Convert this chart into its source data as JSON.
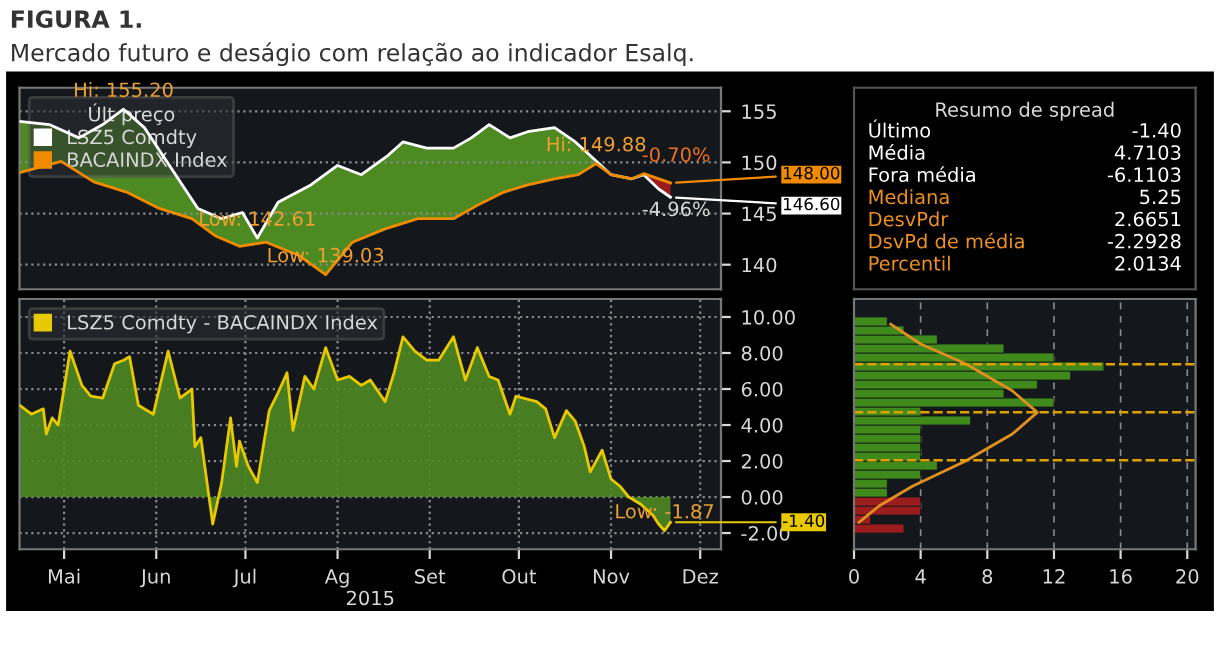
{
  "chart_data": [
    {
      "type": "line",
      "title": "FIGURA 1.",
      "subtitle": "Mercado futuro e deságio com relação ao indicador Esalq.",
      "legend": "top left",
      "legend_title": "Últ preço",
      "grid": true,
      "line_style": "solid",
      "marker": "none",
      "tick_labels": "y",
      "xlim": [
        "2015-04-16",
        "2015-12-08"
      ],
      "ylim": [
        137.6,
        157.3
      ],
      "yticks": [
        140,
        145,
        150,
        155
      ],
      "series": [
        {
          "name": "LSZ5 Comdty",
          "color": "#ffffff",
          "x": [
            "2015-04-16",
            "2015-04-26",
            "2015-05-06",
            "2015-05-14",
            "2015-05-21",
            "2015-05-28",
            "2015-06-15",
            "2015-06-23",
            "2015-06-30",
            "2015-07-05",
            "2015-07-12",
            "2015-07-23",
            "2015-08-01",
            "2015-08-09",
            "2015-08-18",
            "2015-08-23",
            "2015-08-31",
            "2015-09-09",
            "2015-09-15",
            "2015-09-21",
            "2015-09-28",
            "2015-10-04",
            "2015-10-13",
            "2015-10-20",
            "2015-10-26",
            "2015-11-01",
            "2015-11-08",
            "2015-11-12",
            "2015-11-17",
            "2015-11-21"
          ],
          "values": [
            154.0,
            153.7,
            152.4,
            153.7,
            155.2,
            153.4,
            145.5,
            144.5,
            145.1,
            142.61,
            146.1,
            147.8,
            149.7,
            148.8,
            150.7,
            152.0,
            151.4,
            151.4,
            152.4,
            153.7,
            152.4,
            153.0,
            153.4,
            152.0,
            150.4,
            148.8,
            148.4,
            148.8,
            147.4,
            146.6
          ],
          "value_labels": [
            null,
            null,
            null,
            null,
            null,
            null,
            null,
            null,
            null,
            null,
            null,
            null,
            null,
            null,
            null,
            null,
            null,
            null,
            null,
            null,
            null,
            null,
            null,
            null,
            null,
            null,
            null,
            null,
            null,
            "146.60"
          ]
        },
        {
          "name": "BACAINDX Index",
          "color": "#f08a00",
          "x": [
            "2015-04-16",
            "2015-04-30",
            "2015-05-11",
            "2015-05-22",
            "2015-06-02",
            "2015-06-13",
            "2015-06-21",
            "2015-06-29",
            "2015-07-08",
            "2015-07-19",
            "2015-07-28",
            "2015-08-06",
            "2015-08-17",
            "2015-08-28",
            "2015-09-09",
            "2015-09-17",
            "2015-09-26",
            "2015-10-04",
            "2015-10-13",
            "2015-10-21",
            "2015-10-27",
            "2015-11-01",
            "2015-11-08",
            "2015-11-12",
            "2015-11-21"
          ],
          "values": [
            149.0,
            150.1,
            148.1,
            147.1,
            145.5,
            144.5,
            142.8,
            141.8,
            142.2,
            140.9,
            139.03,
            142.2,
            143.5,
            144.5,
            144.5,
            145.8,
            147.1,
            147.8,
            148.4,
            148.8,
            149.88,
            148.8,
            148.4,
            148.9,
            148.0
          ],
          "value_labels": [
            null,
            null,
            null,
            null,
            null,
            null,
            null,
            null,
            null,
            null,
            null,
            null,
            null,
            null,
            null,
            null,
            null,
            null,
            null,
            null,
            null,
            null,
            null,
            null,
            "148.00"
          ]
        }
      ],
      "annotations": [
        {
          "text": "Hi: 155.20",
          "x": "2015-05-21",
          "y": 155.2
        },
        {
          "text": "Low: 142.61",
          "x": "2015-07-05",
          "y": 142.61
        },
        {
          "text": "Low: 139.03",
          "x": "2015-07-28",
          "y": 139.03
        },
        {
          "text": "Hi: 149.88",
          "x": "2015-10-27",
          "y": 149.88
        },
        "-0.70%",
        "-4.96%"
      ]
    },
    {
      "type": "area",
      "legend": "top left",
      "grid": true,
      "line_style": "solid",
      "marker": "none",
      "xlabel": "2015",
      "xlim": [
        "2015-04-16",
        "2015-12-08"
      ],
      "ylim": [
        -2.9,
        11.0
      ],
      "xticks": [
        {
          "value": "2015-05-01",
          "label": "Mai"
        },
        {
          "value": "2015-06-01",
          "label": "Jun"
        },
        {
          "value": "2015-07-01",
          "label": "Jul"
        },
        {
          "value": "2015-08-01",
          "label": "Ag"
        },
        {
          "value": "2015-09-01",
          "label": "Set"
        },
        {
          "value": "2015-10-01",
          "label": "Out"
        },
        {
          "value": "2015-11-01",
          "label": "Nov"
        },
        {
          "value": "2015-12-01",
          "label": "Dez"
        }
      ],
      "yticks": [
        {
          "value": -2,
          "label": "-2.00"
        },
        {
          "value": 0,
          "label": "0.00"
        },
        {
          "value": 2,
          "label": "2.00"
        },
        {
          "value": 4,
          "label": "4.00"
        },
        {
          "value": 6,
          "label": "6.00"
        },
        {
          "value": 8,
          "label": "8.00"
        },
        {
          "value": 10,
          "label": "10.00"
        }
      ],
      "series": [
        {
          "name": "LSZ5 Comdty - BACAINDX Index",
          "color": "#e8c800",
          "x": [
            "2015-04-16",
            "2015-04-20",
            "2015-04-24",
            "2015-04-25",
            "2015-04-27",
            "2015-04-29",
            "2015-05-03",
            "2015-05-07",
            "2015-05-10",
            "2015-05-14",
            "2015-05-18",
            "2015-05-21",
            "2015-05-23",
            "2015-05-26",
            "2015-05-31",
            "2015-06-05",
            "2015-06-09",
            "2015-06-13",
            "2015-06-14",
            "2015-06-16",
            "2015-06-20",
            "2015-06-23",
            "2015-06-26",
            "2015-06-28",
            "2015-06-29",
            "2015-07-02",
            "2015-07-05",
            "2015-07-09",
            "2015-07-12",
            "2015-07-15",
            "2015-07-17",
            "2015-07-21",
            "2015-07-24",
            "2015-07-28",
            "2015-08-01",
            "2015-08-05",
            "2015-08-09",
            "2015-08-12",
            "2015-08-17",
            "2015-08-20",
            "2015-08-23",
            "2015-08-27",
            "2015-08-31",
            "2015-09-04",
            "2015-09-09",
            "2015-09-13",
            "2015-09-17",
            "2015-09-21",
            "2015-09-24",
            "2015-09-28",
            "2015-09-30",
            "2015-10-07",
            "2015-10-10",
            "2015-10-13",
            "2015-10-17",
            "2015-10-20",
            "2015-10-23",
            "2015-10-25",
            "2015-10-29",
            "2015-11-01",
            "2015-11-04",
            "2015-11-07",
            "2015-11-11",
            "2015-11-15",
            "2015-11-17",
            "2015-11-19",
            "2015-11-21"
          ],
          "values": [
            5.1,
            4.6,
            4.9,
            3.5,
            4.4,
            4.0,
            8.1,
            6.2,
            5.6,
            5.5,
            7.4,
            7.6,
            7.8,
            5.1,
            4.6,
            8.1,
            5.5,
            6.0,
            2.8,
            3.3,
            -1.5,
            0.8,
            4.4,
            1.7,
            3.1,
            1.7,
            0.8,
            4.8,
            5.8,
            6.9,
            3.7,
            6.7,
            6.0,
            8.3,
            6.5,
            6.7,
            6.2,
            6.5,
            5.3,
            6.9,
            8.9,
            8.1,
            7.6,
            7.6,
            8.9,
            6.5,
            8.3,
            6.7,
            6.5,
            4.6,
            5.6,
            5.3,
            4.9,
            3.3,
            4.8,
            4.2,
            2.8,
            1.4,
            2.6,
            1.0,
            0.6,
            0.0,
            -0.4,
            -1.0,
            -1.5,
            -1.87,
            -1.4
          ],
          "value_labels": [
            null,
            null,
            null,
            null,
            null,
            null,
            null,
            null,
            null,
            null,
            null,
            null,
            null,
            null,
            null,
            null,
            null,
            null,
            null,
            null,
            null,
            null,
            null,
            null,
            null,
            null,
            null,
            null,
            null,
            null,
            null,
            null,
            null,
            null,
            null,
            null,
            null,
            null,
            null,
            null,
            null,
            null,
            null,
            null,
            null,
            null,
            null,
            null,
            null,
            null,
            null,
            null,
            null,
            null,
            null,
            null,
            null,
            null,
            null,
            null,
            null,
            null,
            null,
            null,
            null,
            null,
            "-1.40"
          ]
        }
      ],
      "annotations": [
        {
          "text": "Low: -1.87",
          "x": "2015-11-19",
          "y": -1.87
        }
      ]
    },
    {
      "type": "histogram",
      "orientation": "horizontal",
      "grid": "x",
      "tick_labels": "x",
      "bins": [
        -2,
        -1.5,
        -1,
        -0.5,
        0,
        0.5,
        1,
        1.5,
        2,
        2.5,
        3,
        3.5,
        4,
        4.5,
        5,
        5.5,
        6,
        6.5,
        7,
        7.5,
        8,
        8.5,
        9,
        9.5,
        10
      ],
      "values": [
        3,
        1,
        4,
        4,
        2,
        2,
        4,
        5,
        4,
        4,
        4,
        4,
        7,
        4,
        12,
        9,
        11,
        13,
        15,
        12,
        9,
        5,
        3,
        2
      ],
      "colors": [
        "#9a1c1c",
        "#9a1c1c",
        "#9a1c1c",
        "#9a1c1c",
        "#3f8a1a",
        "#3f8a1a",
        "#3f8a1a",
        "#3f8a1a",
        "#3f8a1a",
        "#3f8a1a",
        "#3f8a1a",
        "#3f8a1a",
        "#3f8a1a",
        "#3f8a1a",
        "#3f8a1a",
        "#3f8a1a",
        "#3f8a1a",
        "#3f8a1a",
        "#3f8a1a",
        "#3f8a1a",
        "#3f8a1a",
        "#3f8a1a",
        "#3f8a1a",
        "#3f8a1a"
      ],
      "xlim": [
        0,
        20.5
      ],
      "xticks": [
        0,
        4,
        8,
        12,
        16,
        20
      ],
      "ylim": [
        -2.9,
        11.0
      ],
      "series": [
        {
          "type": "line",
          "color": "#e09020",
          "values": [
            0.3,
            1.5,
            3.5,
            6.7,
            9.5,
            11,
            9.5,
            6.7,
            4,
            2.2
          ],
          "x": [
            -1.4,
            -0.5,
            0.6,
            2.0,
            3.5,
            4.7,
            5.9,
            7.4,
            8.5,
            9.6
          ]
        }
      ],
      "ref_lines": [
        {
          "axis": "y",
          "value": 4.71,
          "color": "#e0a000",
          "line_style": "dashed"
        },
        {
          "axis": "y",
          "value": 7.38,
          "color": "#e0a000",
          "line_style": "dashed"
        },
        {
          "axis": "y",
          "value": 2.04,
          "color": "#e0a000",
          "line_style": "dashed"
        }
      ]
    },
    {
      "type": "other",
      "title": "Resumo de spread",
      "annotations": [
        "Último",
        "-1.40",
        "Média",
        "4.7103",
        "Fora média",
        "-6.1103",
        "Mediana",
        "5.25",
        "DesvPdr",
        "2.6651",
        "DsvPd de média",
        "-2.2928",
        "Percentil",
        "2.0134"
      ],
      "colors": [
        "#ffffff",
        "#ffffff",
        "#ffffff",
        "#ffffff",
        "#ffffff",
        "#ffffff",
        "#f09020",
        "#ffffff",
        "#f09020",
        "#ffffff",
        "#f09020",
        "#ffffff",
        "#f09020",
        "#ffffff"
      ]
    }
  ]
}
